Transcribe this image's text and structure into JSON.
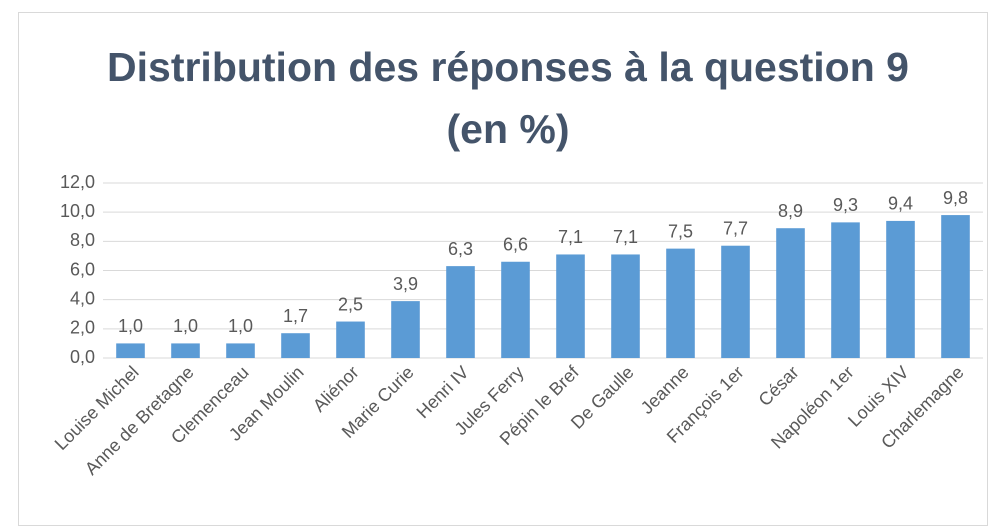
{
  "chart_data": {
    "type": "bar",
    "title": "Distribution des réponses à la question 9 (en %)",
    "categories": [
      "Louise Michel",
      "Anne de Bretagne",
      "Clemenceau",
      "Jean Moulin",
      "Aliénor",
      "Marie Curie",
      "Henri IV",
      "Jules Ferry",
      "Pépin le Bref",
      "De Gaulle",
      "Jeanne",
      "François 1er",
      "César",
      "Napoléon 1er",
      "Louis XIV",
      "Charlemagne"
    ],
    "values": [
      1.0,
      1.0,
      1.0,
      1.7,
      2.5,
      3.9,
      6.3,
      6.6,
      7.1,
      7.1,
      7.5,
      7.7,
      8.9,
      9.3,
      9.4,
      9.8
    ],
    "value_labels": [
      "1,0",
      "1,0",
      "1,0",
      "1,7",
      "2,5",
      "3,9",
      "6,3",
      "6,6",
      "7,1",
      "7,1",
      "7,5",
      "7,7",
      "8,9",
      "9,3",
      "9,4",
      "9,8"
    ],
    "color": "#5b9bd5",
    "ylim": [
      0,
      12
    ],
    "yticks": [
      {
        "value": 0,
        "label": "0,0"
      },
      {
        "value": 2,
        "label": "2,0"
      },
      {
        "value": 4,
        "label": "4,0"
      },
      {
        "value": 6,
        "label": "6,0"
      },
      {
        "value": 8,
        "label": "8,0"
      },
      {
        "value": 10,
        "label": "10,0"
      },
      {
        "value": 12,
        "label": "12,0"
      }
    ],
    "grid": true
  }
}
